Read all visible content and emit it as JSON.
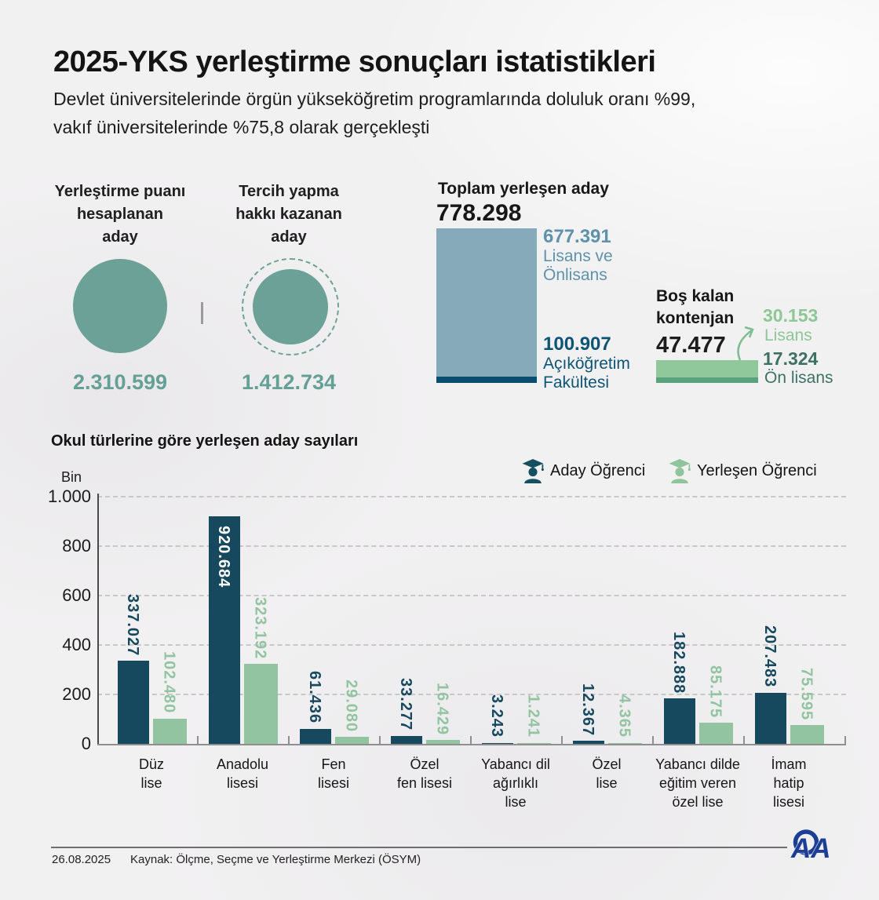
{
  "colors": {
    "teal": "#6ba197",
    "slate_bar": "#87aaba",
    "dark_blue": "#0b4d6e",
    "slate_text": "#5e92ab",
    "deep_blue_text": "#0c5574",
    "green_bar": "#90c79b",
    "green_strip": "#5aa17d",
    "green_light_text": "#8cc795",
    "green_dark_text": "#3c7164",
    "chart_dark": "#16495e",
    "chart_green": "#93c4a1",
    "aa_blue": "#1c3e94"
  },
  "header": {
    "title": "2025-YKS yerleştirme sonuçları istatistikleri",
    "subtitle_lines": [
      "Devlet üniversitelerinde örgün yükseköğretim programlarında doluluk oranı %99,",
      "vakıf üniversitelerinde %75,8 olarak gerçekleşti"
    ]
  },
  "stats": {
    "calculated": {
      "label_lines": [
        "Yerleştirme puanı",
        "hesaplanan",
        "aday"
      ],
      "value": "2.310.599"
    },
    "eligible": {
      "label_lines": [
        "Tercih yapma",
        "hakkı kazanan",
        "aday"
      ],
      "value": "1.412.734"
    },
    "placed": {
      "title": "Toplam yerleşen aday",
      "total": "778.298",
      "segment_lisans": {
        "value": "677.391",
        "label_lines": [
          "Lisans ve",
          "Önlisans"
        ]
      },
      "segment_aof": {
        "value": "100.907",
        "label_lines": [
          "Açıköğretim",
          "Fakültesi"
        ]
      }
    },
    "vacant": {
      "title_lines": [
        "Boş kalan",
        "kontenjan"
      ],
      "total": "47.477",
      "lisans": {
        "value": "30.153",
        "label": "Lisans"
      },
      "onlisans": {
        "value": "17.324",
        "label": "Ön lisans"
      }
    }
  },
  "chart_data": {
    "type": "bar",
    "title": "Okul türlerine göre yerleşen aday sayıları",
    "unit_label": "Bin",
    "legend_position": "top-right",
    "grid": "horizontal-dashed",
    "legend": [
      {
        "name": "Aday Öğrenci",
        "color": "#16495e"
      },
      {
        "name": "Yerleşen Öğrenci",
        "color": "#93c4a1"
      }
    ],
    "y_axis": {
      "tick_labels": [
        "0",
        "200",
        "400",
        "600",
        "800",
        "1.000"
      ],
      "tick_values": [
        0,
        200000,
        400000,
        600000,
        800000,
        1000000
      ],
      "max": 1000000
    },
    "categories": [
      "Düz lise",
      "Anadolu lisesi",
      "Fen lisesi",
      "Özel fen lisesi",
      "Yabancı dil ağırlıklı lise",
      "Özel lise",
      "Yabancı dilde eğitim veren özel lise",
      "İmam hatip lisesi"
    ],
    "category_lines": [
      [
        "Düz",
        "lise"
      ],
      [
        "Anadolu",
        "lisesi"
      ],
      [
        "Fen",
        "lisesi"
      ],
      [
        "Özel",
        "fen lisesi"
      ],
      [
        "Yabancı dil",
        "ağırlıklı",
        "lise"
      ],
      [
        "Özel",
        "lise"
      ],
      [
        "Yabancı dilde",
        "eğitim veren",
        "özel lise"
      ],
      [
        "İmam",
        "hatip",
        "lisesi"
      ]
    ],
    "series": [
      {
        "name": "Aday Öğrenci",
        "color": "#16495e",
        "values": [
          337027,
          920684,
          61436,
          33277,
          3243,
          12367,
          182888,
          207483
        ],
        "labels": [
          "337.027",
          "920.684",
          "61.436",
          "33.277",
          "3.243",
          "12.367",
          "182.888",
          "207.483"
        ]
      },
      {
        "name": "Yerleşen Öğrenci",
        "color": "#93c4a1",
        "values": [
          102480,
          323192,
          29080,
          16429,
          1241,
          4365,
          85175,
          75595
        ],
        "labels": [
          "102.480",
          "323.192",
          "29.080",
          "16.429",
          "1.241",
          "4.365",
          "85.175",
          "75.595"
        ]
      }
    ]
  },
  "footer": {
    "date": "26.08.2025",
    "source": "Kaynak: Ölçme, Seçme ve Yerleştirme Merkezi (ÖSYM)",
    "agency_logo": "AA"
  }
}
